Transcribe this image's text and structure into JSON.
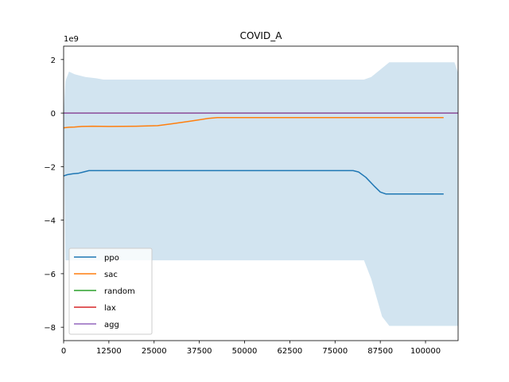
{
  "chart_data": {
    "type": "line",
    "title": "COVID_A",
    "xlabel": "",
    "ylabel": "",
    "y_scale_label": "1e9",
    "xlim": [
      0,
      109000
    ],
    "ylim": [
      -8.5,
      2.5
    ],
    "x_ticks": [
      0,
      12500,
      25000,
      37500,
      50000,
      62500,
      75000,
      87500,
      100000
    ],
    "x_tick_labels": [
      "0",
      "12500",
      "25000",
      "37500",
      "50000",
      "62500",
      "75000",
      "87500",
      "100000"
    ],
    "y_ticks": [
      -8,
      -6,
      -4,
      -2,
      0,
      2
    ],
    "y_tick_labels": [
      "−8",
      "−6",
      "−4",
      "−2",
      "0",
      "2"
    ],
    "grid": false,
    "legend_position": "lower-left",
    "band": {
      "color": "#1f77b4",
      "opacity": 0.2,
      "upper": [
        [
          0,
          0.0
        ],
        [
          500,
          1.2
        ],
        [
          1500,
          1.55
        ],
        [
          3000,
          1.45
        ],
        [
          6000,
          1.35
        ],
        [
          9000,
          1.3
        ],
        [
          11000,
          1.25
        ],
        [
          83000,
          1.25
        ],
        [
          85000,
          1.35
        ],
        [
          90000,
          1.9
        ],
        [
          108000,
          1.9
        ],
        [
          109000,
          1.5
        ]
      ],
      "lower": [
        [
          0,
          -0.4
        ],
        [
          500,
          -5.5
        ],
        [
          83000,
          -5.5
        ],
        [
          85000,
          -6.2
        ],
        [
          88000,
          -7.6
        ],
        [
          90000,
          -7.95
        ],
        [
          108000,
          -7.95
        ],
        [
          109000,
          -7.95
        ]
      ]
    },
    "series": [
      {
        "name": "ppo",
        "color": "#1f77b4",
        "points": [
          [
            0,
            -2.35
          ],
          [
            1000,
            -2.3
          ],
          [
            2500,
            -2.27
          ],
          [
            4000,
            -2.25
          ],
          [
            5500,
            -2.2
          ],
          [
            7000,
            -2.15
          ],
          [
            12500,
            -2.15
          ],
          [
            80000,
            -2.15
          ],
          [
            81500,
            -2.2
          ],
          [
            83500,
            -2.4
          ],
          [
            86000,
            -2.75
          ],
          [
            87500,
            -2.95
          ],
          [
            89000,
            -3.02
          ],
          [
            105000,
            -3.02
          ]
        ]
      },
      {
        "name": "sac",
        "color": "#ff7f0e",
        "points": [
          [
            0,
            -0.55
          ],
          [
            1500,
            -0.53
          ],
          [
            3000,
            -0.52
          ],
          [
            5000,
            -0.5
          ],
          [
            8000,
            -0.49
          ],
          [
            12500,
            -0.5
          ],
          [
            20000,
            -0.49
          ],
          [
            26000,
            -0.47
          ],
          [
            30000,
            -0.4
          ],
          [
            35000,
            -0.3
          ],
          [
            40000,
            -0.2
          ],
          [
            42500,
            -0.17
          ],
          [
            105000,
            -0.17
          ]
        ]
      },
      {
        "name": "random",
        "color": "#2ca02c",
        "points": [
          [
            0,
            0.0
          ],
          [
            109000,
            0.0
          ]
        ]
      },
      {
        "name": "lax",
        "color": "#d62728",
        "points": [
          [
            0,
            0.0
          ],
          [
            109000,
            0.0
          ]
        ]
      },
      {
        "name": "agg",
        "color": "#9467bd",
        "points": [
          [
            0,
            0.0
          ],
          [
            109000,
            0.0
          ]
        ]
      }
    ]
  }
}
